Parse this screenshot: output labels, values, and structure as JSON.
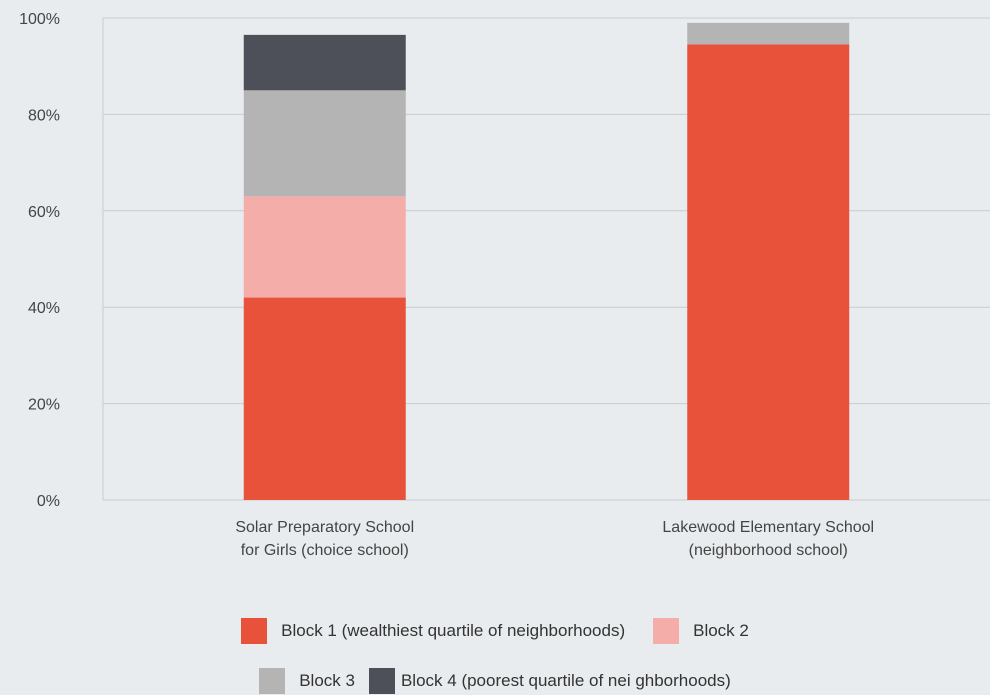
{
  "chart_data": {
    "type": "bar",
    "stacked": true,
    "categories": [
      [
        "Solar Preparatory School",
        "for Girls (choice school)"
      ],
      [
        "Lakewood Elementary School",
        "(neighborhood school)"
      ]
    ],
    "series": [
      {
        "name": "Block 1 (wealthiest quartile of neighborhoods)",
        "color": "#e8513a",
        "values": [
          42,
          94.5
        ]
      },
      {
        "name": "Block 2",
        "color": "#f4ada8",
        "values": [
          21,
          0
        ]
      },
      {
        "name": "Block 3",
        "color": "#b4b4b4",
        "values": [
          22,
          4.5
        ]
      },
      {
        "name": "Block 4 (poorest quartile of nei ghborhoods)",
        "color": "#4d5059",
        "values": [
          11.5,
          0
        ]
      }
    ],
    "yticks": [
      "0%",
      "20%",
      "40%",
      "60%",
      "80%",
      "100%"
    ],
    "ylim": [
      0,
      100
    ],
    "grid": true,
    "legend_position": "bottom"
  }
}
